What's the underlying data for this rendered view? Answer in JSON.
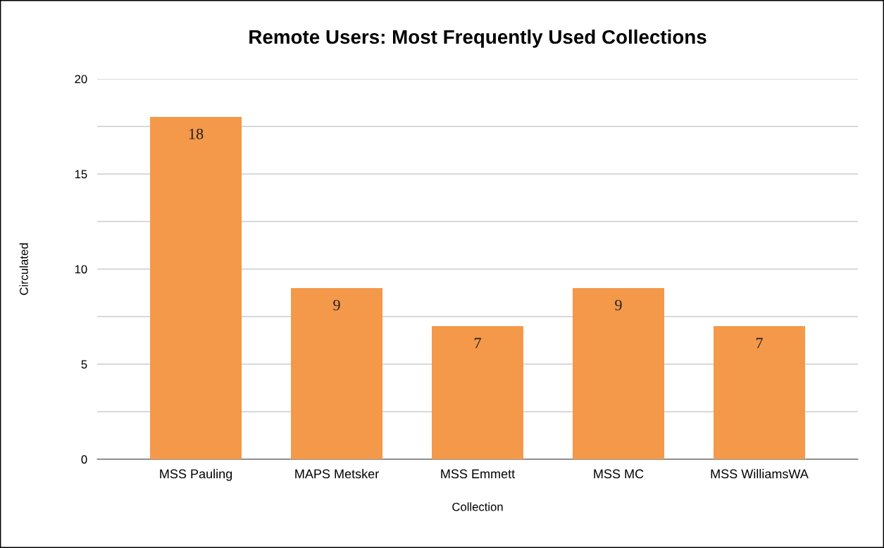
{
  "chart_data": {
    "type": "bar",
    "title": "Remote Users: Most Frequently Used Collections",
    "xlabel": "Collection",
    "ylabel": "Circulated",
    "categories": [
      "MSS Pauling",
      "MAPS Metsker",
      "MSS Emmett",
      "MSS MC",
      "MSS WilliamsWA"
    ],
    "values": [
      18,
      9,
      7,
      9,
      7
    ],
    "color": "#f4984a",
    "ylim": [
      0,
      20
    ],
    "yticks": [
      0,
      {
        "value": 2.5,
        "label": null
      },
      5,
      {
        "value": 7.5,
        "label": null
      },
      10,
      {
        "value": 12.5,
        "label": null
      },
      15,
      {
        "value": 17.5,
        "label": null
      },
      20
    ],
    "grid": "y",
    "data_labels": true,
    "legend": false
  }
}
